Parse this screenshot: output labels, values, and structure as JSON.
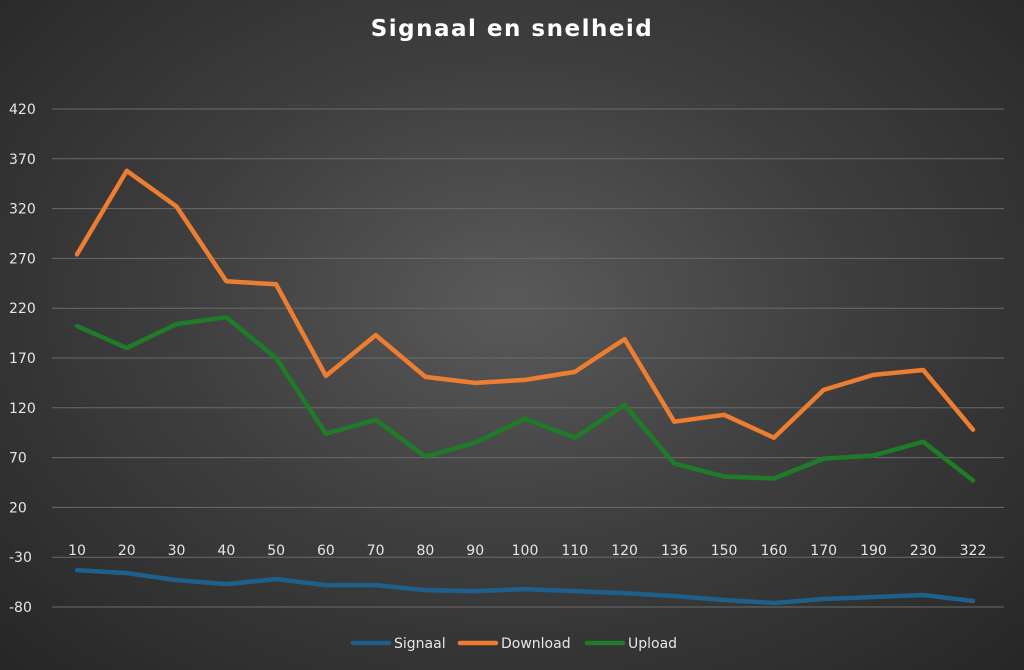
{
  "chart_data": {
    "type": "line",
    "title": "Signaal en snelheid",
    "xlabel": "",
    "ylabel": "",
    "categories": [
      "10",
      "20",
      "30",
      "40",
      "50",
      "60",
      "70",
      "80",
      "90",
      "100",
      "110",
      "120",
      "136",
      "150",
      "160",
      "170",
      "190",
      "230",
      "322"
    ],
    "ylim": [
      -80,
      420
    ],
    "yticks": [
      -80,
      -30,
      20,
      70,
      120,
      170,
      220,
      270,
      320,
      370,
      420
    ],
    "grid": true,
    "legend_position": "bottom",
    "series": [
      {
        "name": "Signaal",
        "color": "#1f5f8b",
        "values": [
          -43,
          -46,
          -53,
          -57,
          -52,
          -58,
          -58,
          -63,
          -64,
          -62,
          -64,
          -66,
          -69,
          -73,
          -76,
          -72,
          -70,
          -68,
          -74
        ]
      },
      {
        "name": "Download",
        "color": "#ed7d31",
        "values": [
          274,
          358,
          322,
          247,
          244,
          152,
          193,
          151,
          145,
          148,
          156,
          189,
          106,
          113,
          90,
          138,
          153,
          158,
          98
        ]
      },
      {
        "name": "Upload",
        "color": "#1e7b28",
        "values": [
          202,
          180,
          204,
          211,
          170,
          94,
          108,
          71,
          85,
          109,
          90,
          123,
          64,
          51,
          49,
          69,
          72,
          86,
          47
        ]
      }
    ]
  }
}
